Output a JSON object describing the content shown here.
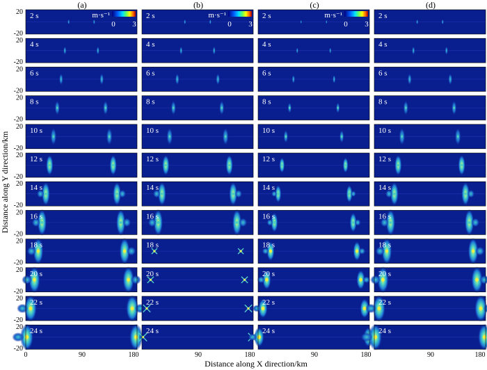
{
  "figure": {
    "columns": [
      "(a)",
      "(b)",
      "(c)",
      "(d)"
    ],
    "time_labels": [
      "2 s",
      "4 s",
      "6 s",
      "8 s",
      "10 s",
      "12 s",
      "14 s",
      "16 s",
      "18 s",
      "20 s",
      "22 s",
      "24 s"
    ],
    "colorbar": {
      "unit": "m·s⁻¹",
      "min_label": "0",
      "max_label": "3"
    },
    "x_axis": {
      "title": "Distance along X direction/km",
      "ticks": [
        "0",
        "90",
        "180"
      ]
    },
    "y_axis": {
      "title": "Distance along Y direction/km",
      "ticks": [
        "20",
        "-20"
      ]
    }
  },
  "chart_data": {
    "type": "heatmap",
    "x_range": [
      0,
      180
    ],
    "y_range": [
      -20,
      20
    ],
    "value_range": [
      0,
      3
    ],
    "times_s": [
      2,
      4,
      6,
      8,
      10,
      12,
      14,
      16,
      18,
      20,
      22,
      24
    ],
    "colors": {
      "background": "#0a1f8f",
      "low": "#1560d0",
      "mid": "#40d0c0",
      "high": "#f0f040"
    }
  }
}
